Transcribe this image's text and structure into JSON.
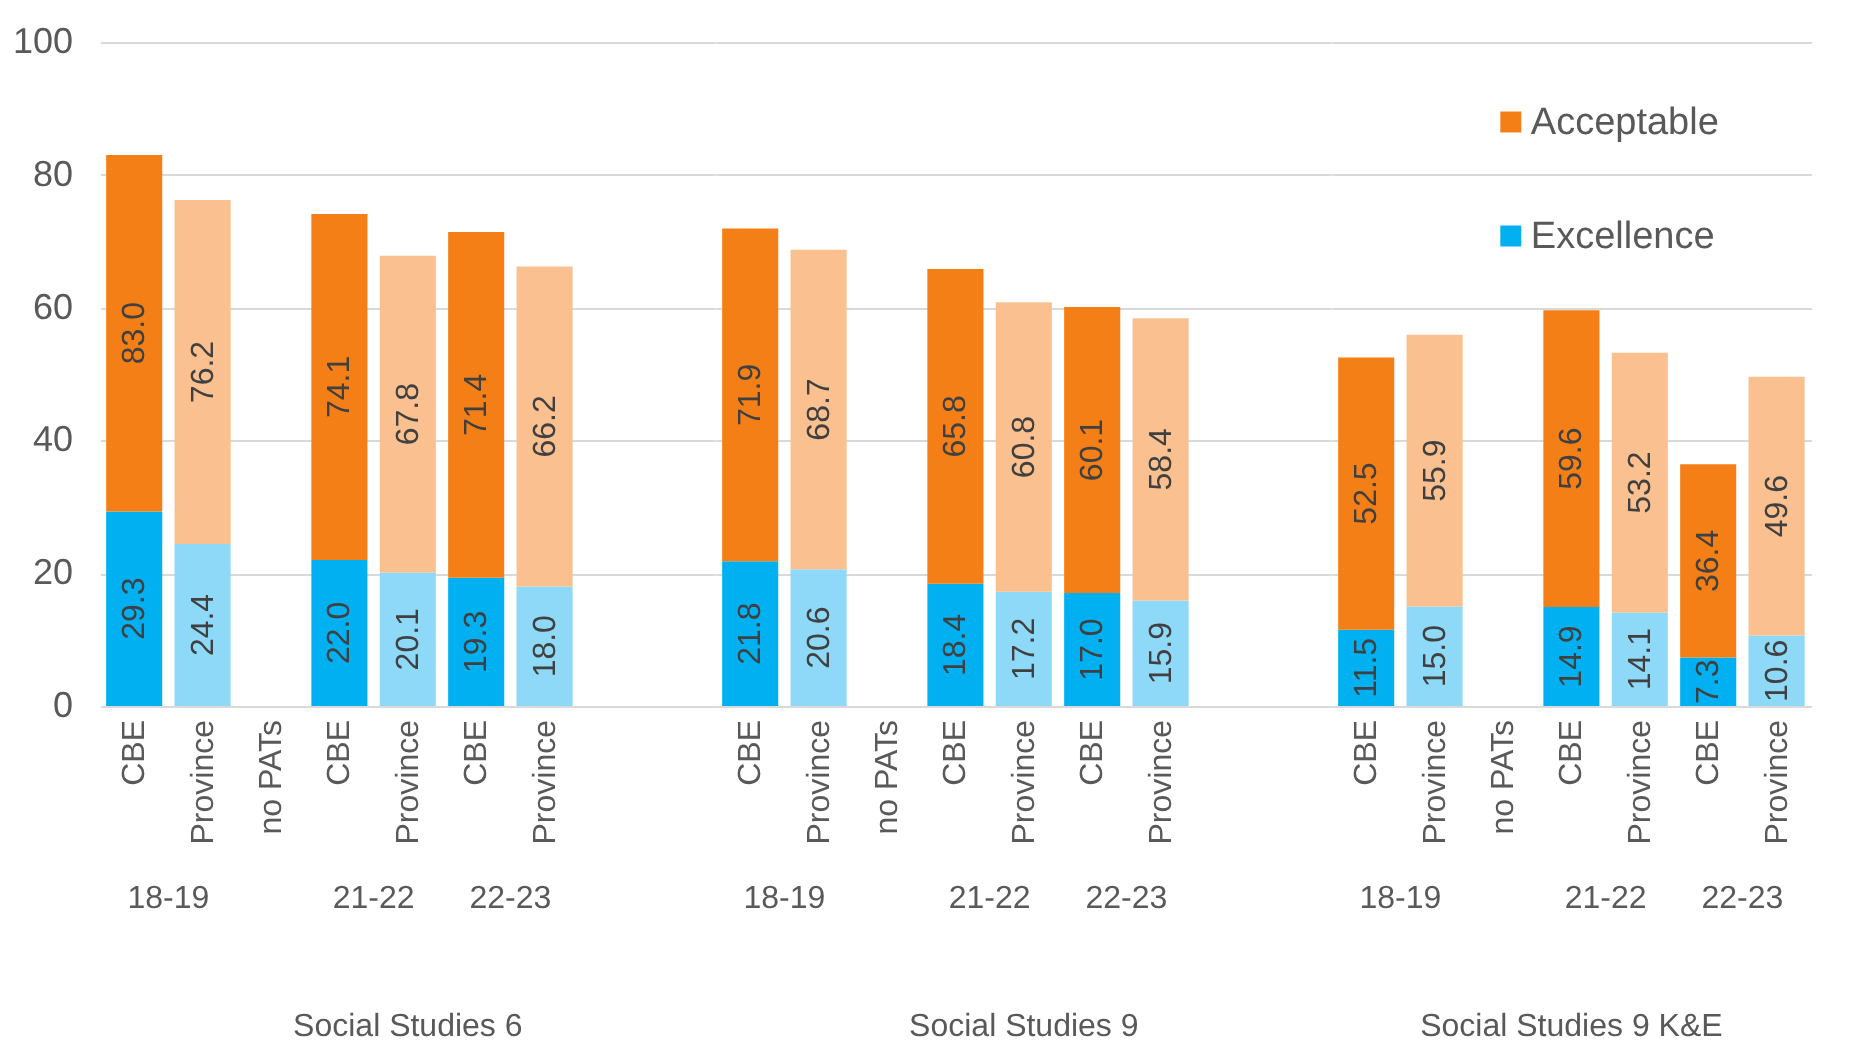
{
  "chart_data": [
    {
      "type": "bar",
      "stacked": true,
      "xlabel": "Social Studies 6",
      "categories": [
        "CBE",
        "Province",
        "no PATs",
        "CBE",
        "Province",
        "CBE",
        "Province",
        null,
        null
      ],
      "series": [
        {
          "values": [
            29.3,
            24.4,
            null,
            22.0,
            20.1,
            19.3,
            18.0,
            null,
            null
          ],
          "value_labels": [
            "29.3",
            "24.4",
            null,
            "22.0",
            "20.1",
            "19.3",
            "18.0",
            null,
            null
          ],
          "colors": [
            "#00b0f0",
            "#8ed8f8",
            "#00b0f0",
            "#00b0f0",
            "#8ed8f8",
            "#00b0f0",
            "#8ed8f8",
            "#00b0f0",
            "#00b0f0"
          ]
        },
        {
          "values": [
            53.7,
            51.8,
            null,
            52.1,
            47.7,
            52.1,
            48.2,
            null,
            null
          ],
          "colors": [
            "#f57f17",
            "#fac08f",
            "#f57f17",
            "#f57f17",
            "#fac08f",
            "#f57f17",
            "#fac08f",
            "#f57f17",
            "#f57f17"
          ]
        }
      ],
      "totals": [
        "83.0",
        "76.2",
        null,
        "74.1",
        "67.8",
        "71.4",
        "66.2",
        null,
        null
      ],
      "annotations": [
        "18-19",
        "21-22",
        "22-23"
      ],
      "ylim": [
        0,
        100
      ],
      "yticks": [
        0,
        20,
        40,
        60,
        80,
        100
      ],
      "grid": "y"
    },
    {
      "type": "bar",
      "stacked": true,
      "xlabel": "Social Studies 9",
      "categories": [
        "CBE",
        "Province",
        "no PATs",
        "CBE",
        "Province",
        "CBE",
        "Province",
        null,
        null
      ],
      "series": [
        {
          "values": [
            21.8,
            20.6,
            null,
            18.4,
            17.2,
            17.0,
            15.9,
            null,
            null
          ],
          "value_labels": [
            "21.8",
            "20.6",
            null,
            "18.4",
            "17.2",
            "17.0",
            "15.9",
            null,
            null
          ],
          "colors": [
            "#00b0f0",
            "#8ed8f8",
            "#00b0f0",
            "#00b0f0",
            "#8ed8f8",
            "#00b0f0",
            "#8ed8f8",
            "#00b0f0",
            "#00b0f0"
          ]
        },
        {
          "values": [
            50.1,
            48.1,
            null,
            47.4,
            43.6,
            43.1,
            42.5,
            null,
            null
          ],
          "colors": [
            "#f57f17",
            "#fac08f",
            "#f57f17",
            "#f57f17",
            "#fac08f",
            "#f57f17",
            "#fac08f",
            "#f57f17",
            "#f57f17"
          ]
        }
      ],
      "totals": [
        "71.9",
        "68.7",
        null,
        "65.8",
        "60.8",
        "60.1",
        "58.4",
        null,
        null
      ],
      "annotations": [
        "18-19",
        "21-22",
        "22-23"
      ],
      "ylim": [
        0,
        100
      ],
      "yticks": [
        0,
        20,
        40,
        60,
        80,
        100
      ],
      "grid": "y",
      "tick_labels": "x"
    },
    {
      "type": "bar",
      "stacked": true,
      "xlabel": "Social Studies 9 K&E",
      "categories": [
        "CBE",
        "Province",
        "no PATs",
        "CBE",
        "Province",
        "CBE",
        "Province"
      ],
      "series": [
        {
          "name": "Excellence",
          "values": [
            11.5,
            15.0,
            null,
            14.9,
            14.1,
            7.3,
            10.6
          ],
          "value_labels": [
            "11.5",
            "15.0",
            null,
            "14.9",
            "14.1",
            "7.3",
            "10.6"
          ],
          "color": "#00b0f0",
          "colors": [
            "#00b0f0",
            "#8ed8f8",
            "#00b0f0",
            "#00b0f0",
            "#8ed8f8",
            "#00b0f0",
            "#8ed8f8"
          ]
        },
        {
          "name": "Acceptable",
          "values": [
            41.0,
            40.9,
            null,
            44.7,
            39.1,
            29.1,
            39.0
          ],
          "color": "#f57f17",
          "colors": [
            "#f57f17",
            "#fac08f",
            "#f57f17",
            "#f57f17",
            "#fac08f",
            "#f57f17",
            "#fac08f"
          ]
        }
      ],
      "totals": [
        "52.5",
        "55.9",
        null,
        "59.6",
        "53.2",
        "36.4",
        "49.6"
      ],
      "annotations": [
        "18-19",
        "21-22",
        "22-23"
      ],
      "ylim": [
        0,
        100
      ],
      "yticks": [
        0,
        20,
        40,
        60,
        80,
        100
      ],
      "grid": "y",
      "tick_labels": "x",
      "legend": "top right"
    }
  ]
}
